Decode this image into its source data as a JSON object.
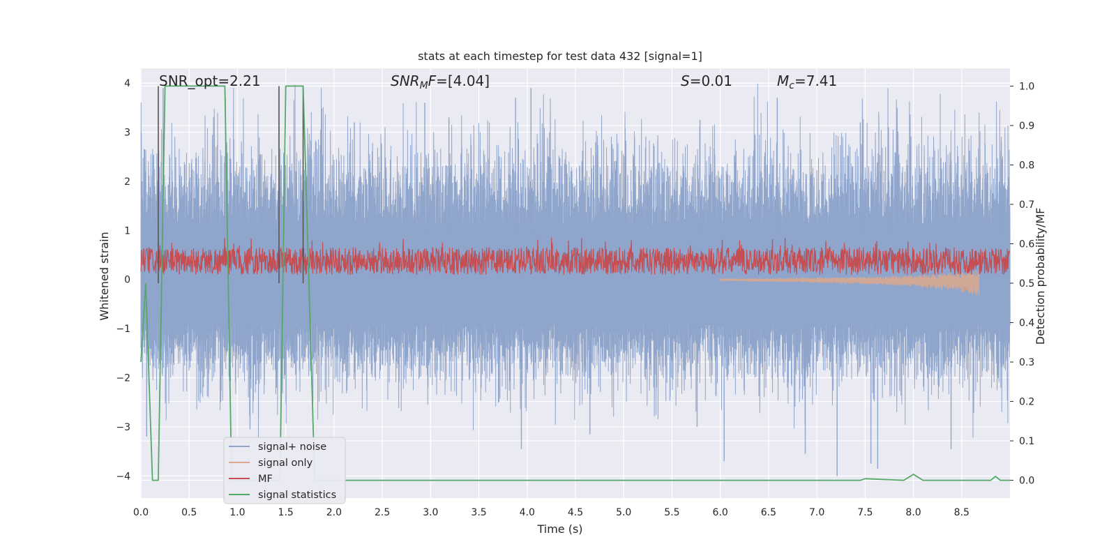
{
  "chart_data": {
    "type": "line",
    "title": "stats at each timestep for test data 432 [signal=1]",
    "xlabel": "Time (s)",
    "ylabel": "Whitened strain",
    "y2label": "Detection probability/MF",
    "xlim": [
      0.0,
      9.0
    ],
    "ylim": [
      -4.45,
      4.3
    ],
    "y2lim": [
      -0.045,
      1.045
    ],
    "grid": true,
    "legend_placement": "lower-left",
    "x_ticks": [
      0.0,
      0.5,
      1.0,
      1.5,
      2.0,
      2.5,
      3.0,
      3.5,
      4.0,
      4.5,
      5.0,
      5.5,
      6.0,
      6.5,
      7.0,
      7.5,
      8.0,
      8.5
    ],
    "x_tick_labels": [
      "0.0",
      "0.5",
      "1.0",
      "1.5",
      "2.0",
      "2.5",
      "3.0",
      "3.5",
      "4.0",
      "4.5",
      "5.0",
      "5.5",
      "6.0",
      "6.5",
      "7.0",
      "7.5",
      "8.0",
      "8.5"
    ],
    "y_ticks": [
      4,
      3,
      2,
      1,
      0,
      -1,
      -2,
      -3,
      -4
    ],
    "y_tick_labels": [
      "4",
      "3",
      "2",
      "1",
      "0",
      "−1",
      "−2",
      "−3",
      "−4"
    ],
    "y2_ticks": [
      1.0,
      0.9,
      0.8,
      0.7,
      0.6,
      0.5,
      0.4,
      0.3,
      0.2,
      0.1,
      0.0
    ],
    "y2_tick_labels": [
      "1.0",
      "0.9",
      "0.8",
      "0.7",
      "0.6",
      "0.5",
      "0.4",
      "0.3",
      "0.2",
      "0.1",
      "0.0"
    ],
    "annotations": {
      "snr_opt": "SNR_opt=2.21",
      "snr_mf": "=[4.04]",
      "s": "=0.01",
      "mc": "=7.41"
    },
    "series": [
      {
        "name": "signal+ noise",
        "color": "#8fa5cc",
        "axis": "left",
        "style": "noise",
        "x_range": [
          0.0,
          9.0
        ],
        "typical_envelope": [
          -1.8,
          2.3
        ],
        "peaks": [
          {
            "x": 0.23,
            "y": 3.9
          },
          {
            "x": 1.43,
            "y": 3.9
          },
          {
            "x": 2.21,
            "y": 3.2
          },
          {
            "x": 2.94,
            "y": 3.6
          },
          {
            "x": 3.19,
            "y": 3.3
          },
          {
            "x": 3.88,
            "y": 3.7
          },
          {
            "x": 4.04,
            "y": 3.9
          },
          {
            "x": 5.79,
            "y": 3.25
          },
          {
            "x": 6.59,
            "y": 3.7
          },
          {
            "x": 7.45,
            "y": 3.2
          },
          {
            "x": 7.74,
            "y": 3.1
          },
          {
            "x": 8.91,
            "y": 2.8
          },
          {
            "x": 3.94,
            "y": -3.45
          },
          {
            "x": 6.04,
            "y": -3.7
          },
          {
            "x": 6.88,
            "y": -3.55
          },
          {
            "x": 7.21,
            "y": -4.0
          },
          {
            "x": 7.56,
            "y": -3.75
          },
          {
            "x": 7.63,
            "y": -3.85
          },
          {
            "x": 8.39,
            "y": -3.45
          },
          {
            "x": 0.06,
            "y": -3.2
          },
          {
            "x": 4.65,
            "y": -3.15
          },
          {
            "x": 5.76,
            "y": -3.0
          },
          {
            "x": 1.13,
            "y": -3.05
          }
        ]
      },
      {
        "name": "signal only",
        "color": "#dda88c",
        "axis": "left",
        "style": "chirp",
        "x": [
          6.0,
          6.5,
          7.0,
          7.5,
          7.8,
          8.0,
          8.2,
          8.4,
          8.6,
          8.68
        ],
        "amplitude": [
          0.02,
          0.04,
          0.06,
          0.08,
          0.1,
          0.12,
          0.15,
          0.18,
          0.24,
          0.26
        ]
      },
      {
        "name": "MF",
        "color": "#c44e52",
        "axis": "left",
        "style": "noise",
        "x_range": [
          0.0,
          9.0
        ],
        "typical_envelope": [
          0.1,
          0.65
        ]
      },
      {
        "name": "signal statistics",
        "color": "#55a868",
        "axis": "right",
        "style": "line",
        "x": [
          0.0,
          0.05,
          0.12,
          0.18,
          0.25,
          0.87,
          0.94,
          1.44,
          1.5,
          1.68,
          1.8,
          7.45,
          7.5,
          7.9,
          8.0,
          8.1,
          8.8,
          8.85,
          8.9,
          9.0
        ],
        "values": [
          0.3,
          0.5,
          0.0,
          0.0,
          1.0,
          1.0,
          0.0,
          0.0,
          1.0,
          1.0,
          0.0,
          0.0,
          0.004,
          0.0,
          0.015,
          0.0,
          0.0,
          0.01,
          0.0,
          0.0
        ]
      }
    ],
    "vertical_lines": {
      "color": "#555555",
      "x": [
        0.18,
        1.43,
        1.68
      ]
    }
  }
}
